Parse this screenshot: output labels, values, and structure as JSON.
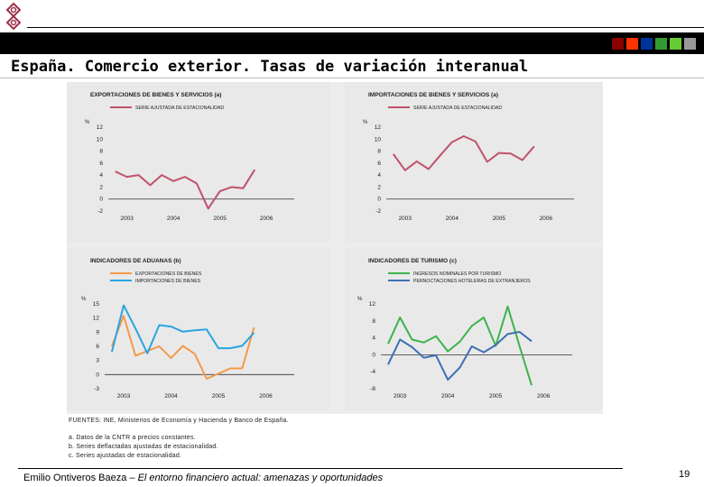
{
  "page": {
    "title": "España. Comercio exterior. Tasas de variación interanual",
    "footer_author": "Emilio Ontiveros Baeza – ",
    "footer_work": "El entorno financiero actual: amenazas y oportunidades",
    "page_number": "19",
    "logo_icon": "stylized-eight-logo-icon",
    "header_squares": [
      "#8b0000",
      "#ff3300",
      "#003399",
      "#339933",
      "#66cc33",
      "#999999"
    ]
  },
  "source": {
    "line1": "FUENTES: INE, Ministerios de Economía y Hacienda y Banco de España.",
    "note_a": "a. Datos de la CNTR a precios constantes.",
    "note_b": "b. Series deflactadas ajustadas de estacionalidad.",
    "note_c": "c. Series ajustadas de estacionalidad."
  },
  "chart_data": [
    {
      "id": "exp",
      "type": "line",
      "title": "EXPORTACIONES DE BIENES Y SERVICIOS (a)",
      "ylabel": "%",
      "ylim": [
        -2,
        12
      ],
      "yticks": [
        -2,
        0,
        2,
        4,
        6,
        8,
        10,
        12
      ],
      "xlim": [
        2002.6,
        2006.6
      ],
      "xticks": [
        2003,
        2004,
        2005,
        2006
      ],
      "xtick_labels": [
        "2003",
        "2004",
        "2005",
        "2006"
      ],
      "series": [
        {
          "name": "SERIE AJUSTADA DE ESTACIONALIDAD",
          "color": "#c0526b",
          "x": [
            2002.75,
            2003.0,
            2003.25,
            2003.5,
            2003.75,
            2004.0,
            2004.25,
            2004.5,
            2004.75,
            2005.0,
            2005.25,
            2005.5,
            2005.75
          ],
          "values": [
            4.6,
            3.7,
            4.0,
            2.3,
            4.0,
            3.0,
            3.7,
            2.6,
            -1.6,
            1.3,
            2.0,
            1.8,
            4.9
          ]
        }
      ]
    },
    {
      "id": "imp",
      "type": "line",
      "title": "IMPORTACIONES DE BIENES Y SERVICIOS (a)",
      "ylabel": "%",
      "ylim": [
        -2,
        12
      ],
      "yticks": [
        -2,
        0,
        2,
        4,
        6,
        8,
        10,
        12
      ],
      "xlim": [
        2002.6,
        2006.6
      ],
      "xticks": [
        2003,
        2004,
        2005,
        2006
      ],
      "xtick_labels": [
        "2003",
        "2004",
        "2005",
        "2006"
      ],
      "series": [
        {
          "name": "SERIE AJUSTADA DE ESTACIONALIDAD",
          "color": "#c0526b",
          "x": [
            2002.75,
            2003.0,
            2003.25,
            2003.5,
            2003.75,
            2004.0,
            2004.25,
            2004.5,
            2004.75,
            2005.0,
            2005.25,
            2005.5,
            2005.75
          ],
          "values": [
            7.5,
            4.8,
            6.3,
            5.0,
            7.3,
            9.5,
            10.5,
            9.6,
            6.2,
            7.7,
            7.6,
            6.5,
            8.8
          ]
        }
      ]
    },
    {
      "id": "adu",
      "type": "line",
      "title": "INDICADORES DE ADUANAS (b)",
      "ylabel": "%",
      "ylim": [
        -3,
        15
      ],
      "yticks": [
        -3,
        0,
        3,
        6,
        9,
        12,
        15
      ],
      "xlim": [
        2002.6,
        2006.6
      ],
      "xticks": [
        2003,
        2004,
        2005,
        2006
      ],
      "xtick_labels": [
        "2003",
        "2004",
        "2005",
        "2006"
      ],
      "series": [
        {
          "name": "EXPORTACIONES DE BIENES",
          "color": "#f39a4a",
          "x": [
            2002.75,
            2003.0,
            2003.25,
            2003.5,
            2003.75,
            2004.0,
            2004.25,
            2004.5,
            2004.75,
            2005.0,
            2005.25,
            2005.5,
            2005.75
          ],
          "values": [
            6.0,
            12.5,
            4.0,
            5.0,
            6.0,
            3.5,
            6.1,
            4.4,
            -0.9,
            0.2,
            1.3,
            1.3,
            10.0
          ]
        },
        {
          "name": "IMPORTACIONES DE BIENES",
          "color": "#2aa5e0",
          "x": [
            2002.75,
            2003.0,
            2003.25,
            2003.5,
            2003.75,
            2004.0,
            2004.25,
            2004.5,
            2004.75,
            2005.0,
            2005.25,
            2005.5,
            2005.75
          ],
          "values": [
            4.8,
            14.7,
            9.8,
            4.5,
            10.5,
            10.2,
            9.1,
            9.4,
            9.6,
            5.6,
            5.6,
            6.1,
            8.9
          ]
        }
      ]
    },
    {
      "id": "tur",
      "type": "line",
      "title": "INDICADORES DE TURISMO (c)",
      "ylabel": "%",
      "ylim": [
        -8,
        12
      ],
      "yticks": [
        -8,
        -4,
        0,
        4,
        8,
        12
      ],
      "xlim": [
        2002.6,
        2006.6
      ],
      "xticks": [
        2003,
        2004,
        2005,
        2006
      ],
      "xtick_labels": [
        "2003",
        "2004",
        "2005",
        "2006"
      ],
      "series": [
        {
          "name": "INGRESOS NOMINALES POR TURISMO",
          "color": "#3cb44b",
          "x": [
            2002.75,
            2003.0,
            2003.25,
            2003.5,
            2003.75,
            2004.0,
            2004.25,
            2004.5,
            2004.75,
            2005.0,
            2005.25,
            2005.5,
            2005.75
          ],
          "values": [
            2.6,
            8.8,
            3.6,
            2.9,
            4.4,
            0.8,
            3.1,
            6.8,
            8.8,
            2.1,
            11.4,
            2.0,
            -7.2
          ]
        },
        {
          "name": "PERNOCTACIONES HOTELERAS DE EXTRANJEROS",
          "color": "#3e6fb5",
          "x": [
            2002.75,
            2003.0,
            2003.25,
            2003.5,
            2003.75,
            2004.0,
            2004.25,
            2004.5,
            2004.75,
            2005.0,
            2005.25,
            2005.5,
            2005.75
          ],
          "values": [
            -2.3,
            3.6,
            1.8,
            -0.7,
            -0.1,
            -5.9,
            -3.0,
            2.0,
            0.6,
            2.3,
            4.9,
            5.4,
            3.2
          ]
        }
      ]
    }
  ]
}
